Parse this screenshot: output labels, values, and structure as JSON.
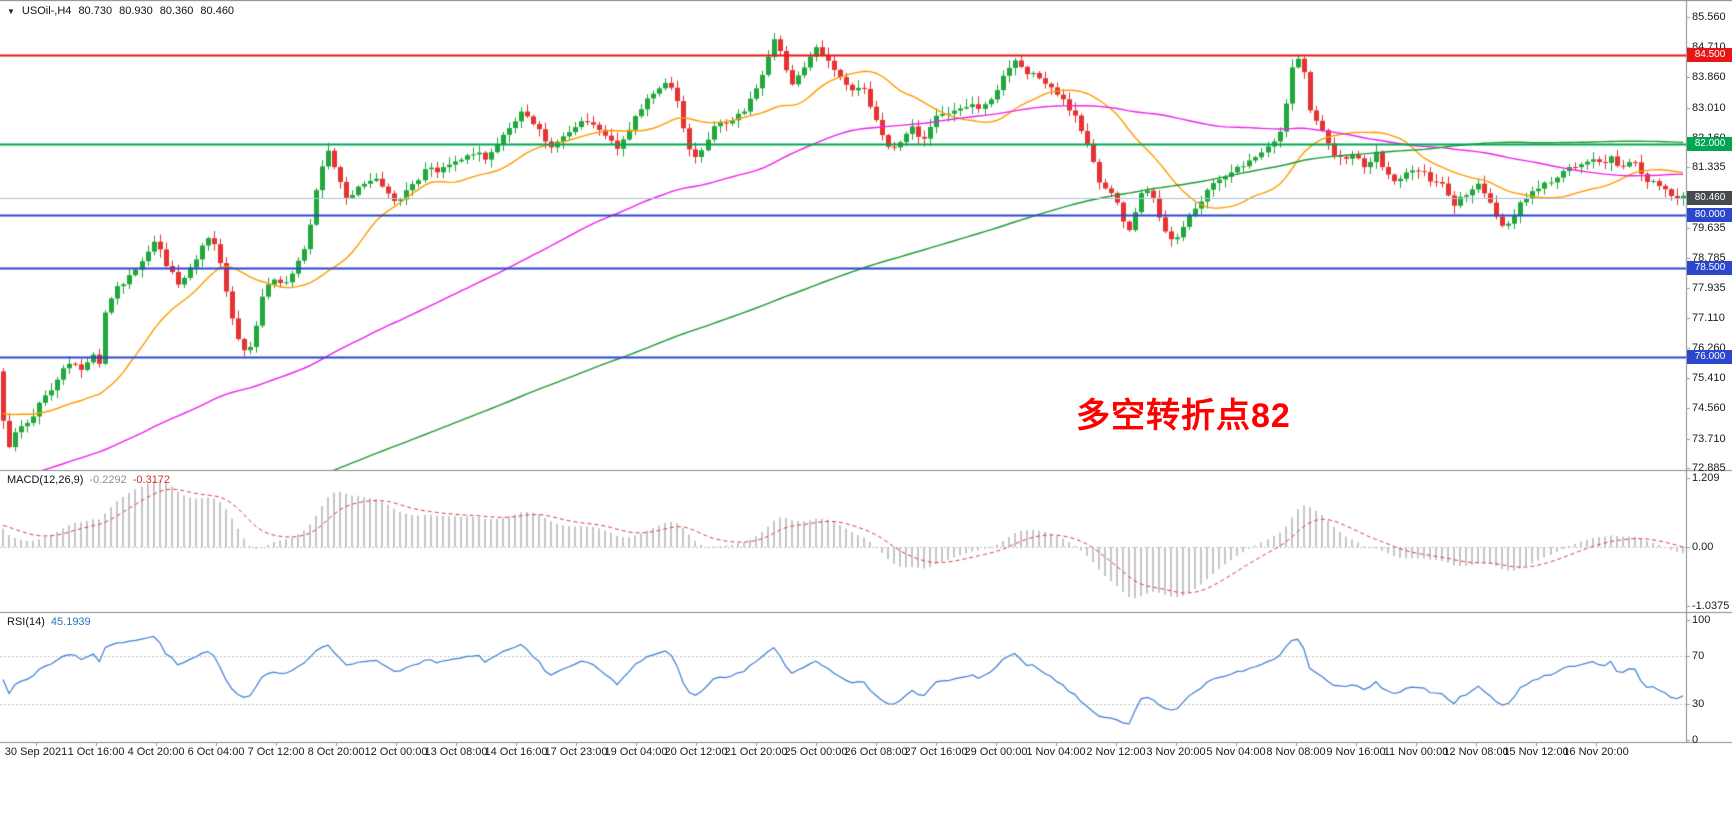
{
  "header": {
    "dropdown_icon": "▼",
    "symbol_timeframe": "USOil-,H4",
    "open": "80.730",
    "high": "80.930",
    "low": "80.360",
    "close": "80.460"
  },
  "annotation": {
    "text": "多空转折点82",
    "color": "#ff0000"
  },
  "price_axis": {
    "ticks": [
      "85.560",
      "84.710",
      "83.860",
      "83.010",
      "82.160",
      "81.335",
      "80.460",
      "79.635",
      "78.785",
      "77.935",
      "77.110",
      "76.260",
      "75.410",
      "74.560",
      "73.710",
      "72.885"
    ]
  },
  "badges": [
    {
      "label": "84.500",
      "value": 84.5,
      "color": "#e51717"
    },
    {
      "label": "82.000",
      "value": 82.0,
      "color": "#00a651"
    },
    {
      "label": "80.460",
      "value": 80.46,
      "color": "#464b50"
    },
    {
      "label": "80.000",
      "value": 80.0,
      "color": "#2c46cc"
    },
    {
      "label": "78.500",
      "value": 78.5,
      "color": "#2c46cc"
    },
    {
      "label": "76.000",
      "value": 76.0,
      "color": "#2c46cc"
    }
  ],
  "hlines": [
    {
      "value": 84.5,
      "color": "#e51717",
      "width": 2,
      "role": "resistance"
    },
    {
      "value": 82.0,
      "color": "#00a651",
      "width": 2,
      "role": "pivot"
    },
    {
      "value": 80.0,
      "color": "#2c46cc",
      "width": 2,
      "role": "support"
    },
    {
      "value": 78.5,
      "color": "#2c46cc",
      "width": 2,
      "role": "support"
    },
    {
      "value": 76.0,
      "color": "#2c46cc",
      "width": 2,
      "role": "support"
    },
    {
      "value": 80.46,
      "color": "#a9c3dc",
      "width": 1,
      "role": "current-price"
    }
  ],
  "chart_data": {
    "type": "candlestick",
    "title": "USOil- H4 candlestick chart with MACD and RSI",
    "symbol": "USOil-",
    "timeframe": "H4",
    "ohlc_current": {
      "open": 80.73,
      "high": 80.93,
      "low": 80.36,
      "close": 80.46
    },
    "price_range": [
      72.885,
      85.56
    ],
    "candle_count": 280,
    "up_color": "#21a83c",
    "down_color": "#e63232",
    "price_path": [
      [
        0,
        75.6
      ],
      [
        0.006,
        73.4
      ],
      [
        0.012,
        74.0
      ],
      [
        0.02,
        74.3
      ],
      [
        0.033,
        75.2
      ],
      [
        0.042,
        75.9
      ],
      [
        0.05,
        75.6
      ],
      [
        0.056,
        76.1
      ],
      [
        0.061,
        75.8
      ],
      [
        0.064,
        77.3
      ],
      [
        0.072,
        78.0
      ],
      [
        0.08,
        78.3
      ],
      [
        0.087,
        78.7
      ],
      [
        0.093,
        79.3
      ],
      [
        0.1,
        78.6
      ],
      [
        0.108,
        78.0
      ],
      [
        0.115,
        78.5
      ],
      [
        0.122,
        79.2
      ],
      [
        0.127,
        79.4
      ],
      [
        0.133,
        78.6
      ],
      [
        0.138,
        77.3
      ],
      [
        0.145,
        76.1
      ],
      [
        0.151,
        76.3
      ],
      [
        0.158,
        77.9
      ],
      [
        0.165,
        78.2
      ],
      [
        0.172,
        78.1
      ],
      [
        0.178,
        78.6
      ],
      [
        0.184,
        79.2
      ],
      [
        0.19,
        80.9
      ],
      [
        0.196,
        81.9
      ],
      [
        0.201,
        81.3
      ],
      [
        0.207,
        80.4
      ],
      [
        0.215,
        80.8
      ],
      [
        0.224,
        81.0
      ],
      [
        0.231,
        80.6
      ],
      [
        0.238,
        80.3
      ],
      [
        0.247,
        80.9
      ],
      [
        0.255,
        81.3
      ],
      [
        0.263,
        81.2
      ],
      [
        0.27,
        81.6
      ],
      [
        0.276,
        81.5
      ],
      [
        0.284,
        81.8
      ],
      [
        0.29,
        81.6
      ],
      [
        0.296,
        82.0
      ],
      [
        0.305,
        82.5
      ],
      [
        0.312,
        82.9
      ],
      [
        0.32,
        82.5
      ],
      [
        0.327,
        81.9
      ],
      [
        0.337,
        82.2
      ],
      [
        0.345,
        82.6
      ],
      [
        0.353,
        82.5
      ],
      [
        0.361,
        82.2
      ],
      [
        0.368,
        81.9
      ],
      [
        0.375,
        82.4
      ],
      [
        0.382,
        83.0
      ],
      [
        0.39,
        83.5
      ],
      [
        0.398,
        83.8
      ],
      [
        0.404,
        83.2
      ],
      [
        0.409,
        82.0
      ],
      [
        0.414,
        81.6
      ],
      [
        0.42,
        82.0
      ],
      [
        0.427,
        82.6
      ],
      [
        0.438,
        82.7
      ],
      [
        0.445,
        83.1
      ],
      [
        0.45,
        83.6
      ],
      [
        0.455,
        84.1
      ],
      [
        0.459,
        84.6
      ],
      [
        0.462,
        85.1
      ],
      [
        0.466,
        84.3
      ],
      [
        0.471,
        83.7
      ],
      [
        0.48,
        84.2
      ],
      [
        0.486,
        84.8
      ],
      [
        0.493,
        84.3
      ],
      [
        0.5,
        83.9
      ],
      [
        0.508,
        83.5
      ],
      [
        0.513,
        83.6
      ],
      [
        0.519,
        83.0
      ],
      [
        0.525,
        82.2
      ],
      [
        0.53,
        81.8
      ],
      [
        0.536,
        82.1
      ],
      [
        0.543,
        82.5
      ],
      [
        0.549,
        82.0
      ],
      [
        0.556,
        82.7
      ],
      [
        0.565,
        82.9
      ],
      [
        0.573,
        83.1
      ],
      [
        0.582,
        83.0
      ],
      [
        0.59,
        83.3
      ],
      [
        0.596,
        83.8
      ],
      [
        0.603,
        84.4
      ],
      [
        0.61,
        84.0
      ],
      [
        0.618,
        83.9
      ],
      [
        0.626,
        83.5
      ],
      [
        0.634,
        83.1
      ],
      [
        0.641,
        82.6
      ],
      [
        0.648,
        81.8
      ],
      [
        0.654,
        80.9
      ],
      [
        0.661,
        80.6
      ],
      [
        0.666,
        80.2
      ],
      [
        0.67,
        79.3
      ],
      [
        0.674,
        80.0
      ],
      [
        0.68,
        80.9
      ],
      [
        0.686,
        80.4
      ],
      [
        0.692,
        79.6
      ],
      [
        0.698,
        79.3
      ],
      [
        0.703,
        79.6
      ],
      [
        0.71,
        80.1
      ],
      [
        0.717,
        80.6
      ],
      [
        0.722,
        80.9
      ],
      [
        0.73,
        81.2
      ],
      [
        0.738,
        81.4
      ],
      [
        0.745,
        81.6
      ],
      [
        0.753,
        81.9
      ],
      [
        0.759,
        82.1
      ],
      [
        0.763,
        82.8
      ],
      [
        0.767,
        84.0
      ],
      [
        0.77,
        84.6
      ],
      [
        0.774,
        84.2
      ],
      [
        0.779,
        82.9
      ],
      [
        0.787,
        82.3
      ],
      [
        0.794,
        81.5
      ],
      [
        0.803,
        81.7
      ],
      [
        0.811,
        81.4
      ],
      [
        0.818,
        81.7
      ],
      [
        0.823,
        81.2
      ],
      [
        0.83,
        80.9
      ],
      [
        0.836,
        81.2
      ],
      [
        0.842,
        81.3
      ],
      [
        0.85,
        81.0
      ],
      [
        0.858,
        80.8
      ],
      [
        0.864,
        80.3
      ],
      [
        0.872,
        80.6
      ],
      [
        0.879,
        80.9
      ],
      [
        0.888,
        80.1
      ],
      [
        0.893,
        79.6
      ],
      [
        0.898,
        79.8
      ],
      [
        0.903,
        80.3
      ],
      [
        0.91,
        80.7
      ],
      [
        0.92,
        80.9
      ],
      [
        0.929,
        81.2
      ],
      [
        0.937,
        81.4
      ],
      [
        0.944,
        81.6
      ],
      [
        0.952,
        81.4
      ],
      [
        0.958,
        81.6
      ],
      [
        0.963,
        81.3
      ],
      [
        0.971,
        81.5
      ],
      [
        0.978,
        81.0
      ],
      [
        0.985,
        80.9
      ],
      [
        0.992,
        80.6
      ],
      [
        1,
        80.46
      ]
    ],
    "prehistory": {
      "count": 220,
      "start": 63,
      "end": 75
    },
    "moving_averages": [
      {
        "name": "ma-fast",
        "period": 20,
        "color": "#ff9c00"
      },
      {
        "name": "ma-mid",
        "period": 90,
        "color": "#ee22ee"
      },
      {
        "name": "ma-slow",
        "period": 200,
        "color": "#1e9c32"
      }
    ],
    "macd": {
      "label": "MACD(12,26,9)",
      "values": [
        "-0.2292",
        "-0.3172"
      ],
      "fast": 12,
      "slow": 26,
      "signal": 9,
      "axis_ticks": [
        {
          "label": "1.209",
          "value": 1.209
        },
        {
          "label": "0.00",
          "value": 0
        },
        {
          "label": "-1.0375",
          "value": -1.0375
        }
      ],
      "hist_color": "#c6c6c6",
      "signal_color": "#e04040"
    },
    "rsi": {
      "label": "RSI(14)",
      "value": "45.1939",
      "period": 14,
      "levels": [
        70,
        30
      ],
      "axis_ticks": [
        {
          "label": "100",
          "value": 100
        },
        {
          "label": "70",
          "value": 70
        },
        {
          "label": "30",
          "value": 30
        },
        {
          "label": "0",
          "value": 0
        }
      ],
      "color": "#3e7fd4"
    },
    "x_labels": [
      "30 Sep 2021",
      "1 Oct 16:00",
      "4 Oct 20:00",
      "6 Oct 04:00",
      "7 Oct 12:00",
      "8 Oct 20:00",
      "12 Oct 00:00",
      "13 Oct 08:00",
      "14 Oct 16:00",
      "17 Oct 23:00",
      "19 Oct 04:00",
      "20 Oct 12:00",
      "21 Oct 20:00",
      "25 Oct 00:00",
      "26 Oct 08:00",
      "27 Oct 16:00",
      "29 Oct 00:00",
      "1 Nov 04:00",
      "2 Nov 12:00",
      "3 Nov 20:00",
      "5 Nov 04:00",
      "8 Nov 08:00",
      "9 Nov 16:00",
      "11 Nov 00:00",
      "12 Nov 08:00",
      "15 Nov 12:00",
      "16 Nov 20:00"
    ]
  }
}
